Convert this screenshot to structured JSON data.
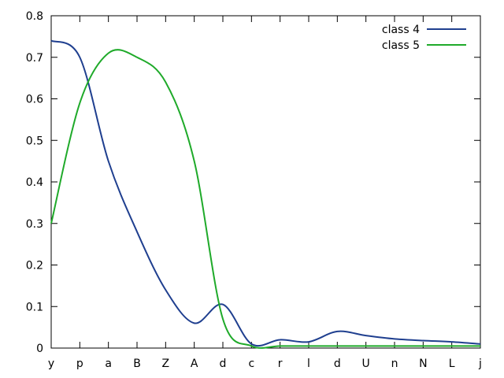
{
  "chart_data": {
    "type": "line",
    "categories": [
      "y",
      "p",
      "a",
      "B",
      "Z",
      "A",
      "d",
      "c",
      "r",
      "l",
      "d",
      "U",
      "n",
      "N",
      "L",
      "j"
    ],
    "ylim": [
      0,
      0.8
    ],
    "yticks": [
      "0",
      "0.1",
      "0.2",
      "0.3",
      "0.4",
      "0.5",
      "0.6",
      "0.7",
      "0.8"
    ],
    "grid": false,
    "legend_position": "top-right",
    "series": [
      {
        "name": "class 4",
        "color": "#1f3f8f",
        "values": [
          0.74,
          0.7,
          0.45,
          0.28,
          0.14,
          0.06,
          0.105,
          0.01,
          0.02,
          0.015,
          0.04,
          0.03,
          0.022,
          0.018,
          0.015,
          0.01
        ]
      },
      {
        "name": "class 5",
        "color": "#1faa2a",
        "values": [
          0.3,
          0.59,
          0.71,
          0.7,
          0.64,
          0.45,
          0.07,
          0.005,
          0.005,
          0.005,
          0.005,
          0.005,
          0.005,
          0.005,
          0.005,
          0.005
        ]
      }
    ]
  }
}
